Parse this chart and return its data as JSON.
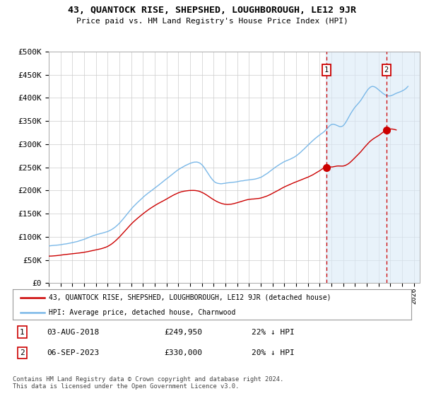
{
  "title": "43, QUANTOCK RISE, SHEPSHED, LOUGHBOROUGH, LE12 9JR",
  "subtitle": "Price paid vs. HM Land Registry's House Price Index (HPI)",
  "ylabel_ticks": [
    "£0",
    "£50K",
    "£100K",
    "£150K",
    "£200K",
    "£250K",
    "£300K",
    "£350K",
    "£400K",
    "£450K",
    "£500K"
  ],
  "ytick_values": [
    0,
    50000,
    100000,
    150000,
    200000,
    250000,
    300000,
    350000,
    400000,
    450000,
    500000
  ],
  "ylim": [
    0,
    500000
  ],
  "xlim_start": 1995.0,
  "xlim_end": 2026.5,
  "xtick_years": [
    1995,
    1996,
    1997,
    1998,
    1999,
    2000,
    2001,
    2002,
    2003,
    2004,
    2005,
    2006,
    2007,
    2008,
    2009,
    2010,
    2011,
    2012,
    2013,
    2014,
    2015,
    2016,
    2017,
    2018,
    2019,
    2020,
    2021,
    2022,
    2023,
    2024,
    2025,
    2026
  ],
  "purchase1_x": 2018.583,
  "purchase1_y": 249950,
  "purchase2_x": 2023.67,
  "purchase2_y": 330000,
  "legend_line1": "43, QUANTOCK RISE, SHEPSHED, LOUGHBOROUGH, LE12 9JR (detached house)",
  "legend_line2": "HPI: Average price, detached house, Charnwood",
  "table_row1_num": "1",
  "table_row1_date": "03-AUG-2018",
  "table_row1_price": "£249,950",
  "table_row1_hpi": "22% ↓ HPI",
  "table_row2_num": "2",
  "table_row2_date": "06-SEP-2023",
  "table_row2_price": "£330,000",
  "table_row2_hpi": "20% ↓ HPI",
  "footnote": "Contains HM Land Registry data © Crown copyright and database right 2024.\nThis data is licensed under the Open Government Licence v3.0.",
  "hpi_color": "#7ab8e8",
  "price_color": "#cc0000",
  "marker_box_color": "#cc0000",
  "dashed_line_color": "#cc0000",
  "hatch_color": "#daeaf8",
  "background_color": "#ffffff",
  "grid_color": "#cccccc",
  "hatch_start": 2018.5
}
